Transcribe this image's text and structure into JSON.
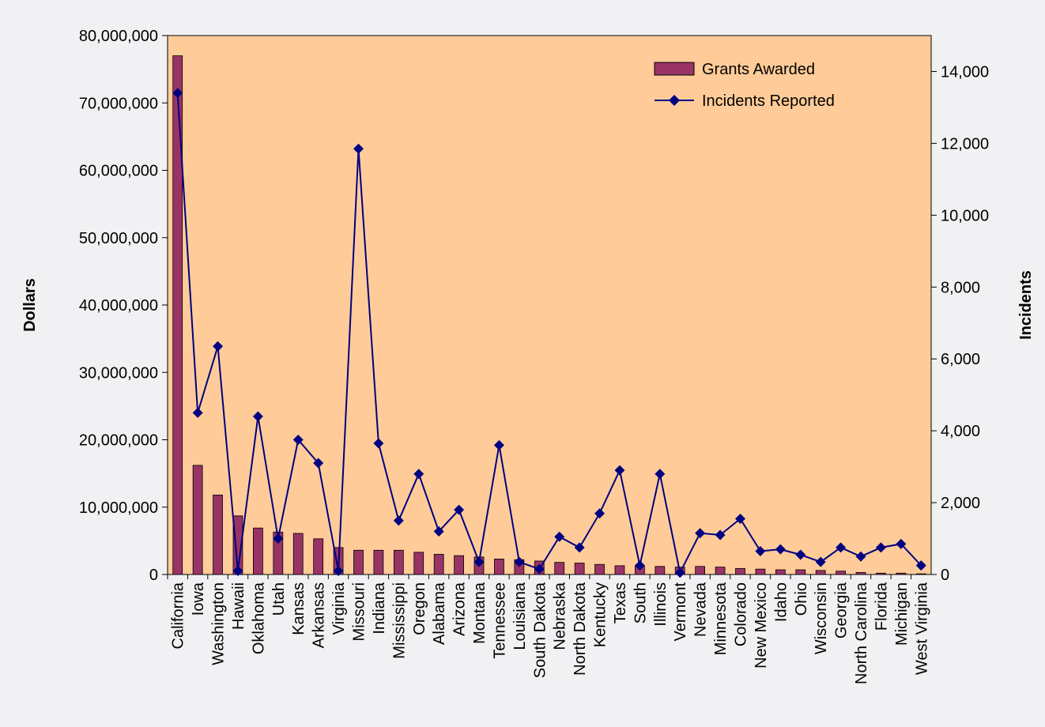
{
  "chart_data": {
    "type": "bar",
    "categories": [
      "California",
      "Iowa",
      "Washington",
      "Hawaii",
      "Oklahoma",
      "Utah",
      "Kansas",
      "Arkansas",
      "Virginia",
      "Missouri",
      "Indiana",
      "Mississippi",
      "Oregon",
      "Alabama",
      "Arizona",
      "Montana",
      "Tennessee",
      "Louisiana",
      "South Dakota",
      "Nebraska",
      "North Dakota",
      "Kentucky",
      "Texas",
      "South",
      "Illinois",
      "Vermont",
      "Nevada",
      "Minnesota",
      "Colorado",
      "New Mexico",
      "Idaho",
      "Ohio",
      "Wisconsin",
      "Georgia",
      "North Carolina",
      "Florida",
      "Michigan",
      "West Virginia"
    ],
    "series": [
      {
        "name": "Grants Awarded",
        "type": "bar",
        "axis": "left",
        "color": "#993366",
        "values": [
          77000000,
          16200000,
          11800000,
          8700000,
          6900000,
          6300000,
          6100000,
          5300000,
          4000000,
          3600000,
          3600000,
          3600000,
          3300000,
          3000000,
          2800000,
          2600000,
          2300000,
          2200000,
          2000000,
          1800000,
          1700000,
          1500000,
          1300000,
          1300000,
          1200000,
          1100000,
          1200000,
          1100000,
          900000,
          800000,
          700000,
          700000,
          600000,
          500000,
          300000,
          200000,
          200000,
          100000
        ]
      },
      {
        "name": "Incidents Reported",
        "type": "line",
        "axis": "right",
        "color": "#000080",
        "values": [
          13400,
          4500,
          6350,
          100,
          4400,
          1000,
          3750,
          3100,
          100,
          11850,
          3650,
          1500,
          2800,
          1200,
          1800,
          350,
          3600,
          350,
          150,
          1050,
          750,
          1700,
          2900,
          250,
          2800,
          50,
          1150,
          1100,
          1550,
          650,
          700,
          550,
          350,
          750,
          500,
          750,
          850,
          250
        ]
      }
    ],
    "y_left": {
      "label": "Dollars",
      "lim": [
        0,
        80000000
      ],
      "ticks": [
        "0",
        "10,000,000",
        "20,000,000",
        "30,000,000",
        "40,000,000",
        "50,000,000",
        "60,000,000",
        "70,000,000",
        "80,000,000"
      ]
    },
    "y_right": {
      "label": "Incidents",
      "lim": [
        0,
        15000
      ],
      "ticks": [
        "0",
        "2,000",
        "4,000",
        "6,000",
        "8,000",
        "10,000",
        "12,000",
        "14,000"
      ]
    },
    "legend": {
      "placement": "top-right"
    },
    "grid": false,
    "colors": {
      "plot_background": "#ffcc99",
      "page_background": "#f1f1f4"
    }
  }
}
